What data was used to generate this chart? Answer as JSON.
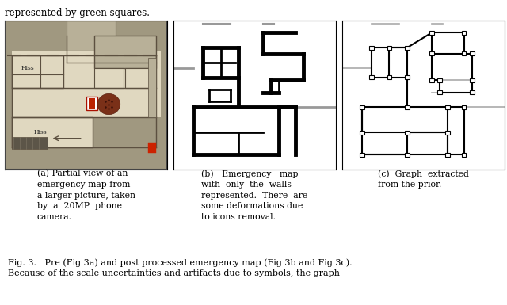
{
  "title_text": "represented by green squares.",
  "caption_line1": "Fig. 3.   Pre (Fig 3a) and post processed emergency map (Fig 3b and Fig 3c).",
  "caption_line2": "Because of the scale uncertainties and artifacts due to symbols, the graph",
  "sub_captions": [
    "(a) Partial view of an\nemergency map from\na larger picture, taken\nby  a  20MP  phone\ncamera.",
    "(b)   Emergency   map\nwith  only  the  walls\nrepresented.  There  are\nsome deformations due\nto icons removal.",
    "(c)  Graph  extracted\nfrom the prior."
  ],
  "fig_width": 6.4,
  "fig_height": 3.85,
  "bg_color": "#ffffff"
}
